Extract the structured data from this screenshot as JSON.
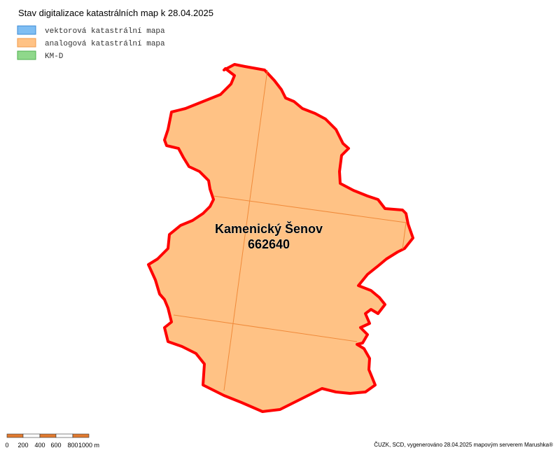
{
  "header": {
    "title": "Stav digitalizace katastrálních map k 28.04.2025"
  },
  "legend": {
    "items": [
      {
        "label": "vektorová katastrální mapa",
        "color": "#7fbef3"
      },
      {
        "label": "analogová katastrální mapa",
        "color": "#ffc285"
      },
      {
        "label": "KM-D",
        "color": "#8fd88b"
      }
    ]
  },
  "map": {
    "area_name": "Kamenický Šenov",
    "area_code": "662640"
  },
  "scale": {
    "labels": [
      "0",
      "200",
      "400",
      "600",
      "800",
      "1000 m"
    ]
  },
  "footer": {
    "attribution": "ČUZK, SCD, vygenerováno 28.04.2025 mapovým serverem Marushka®"
  }
}
